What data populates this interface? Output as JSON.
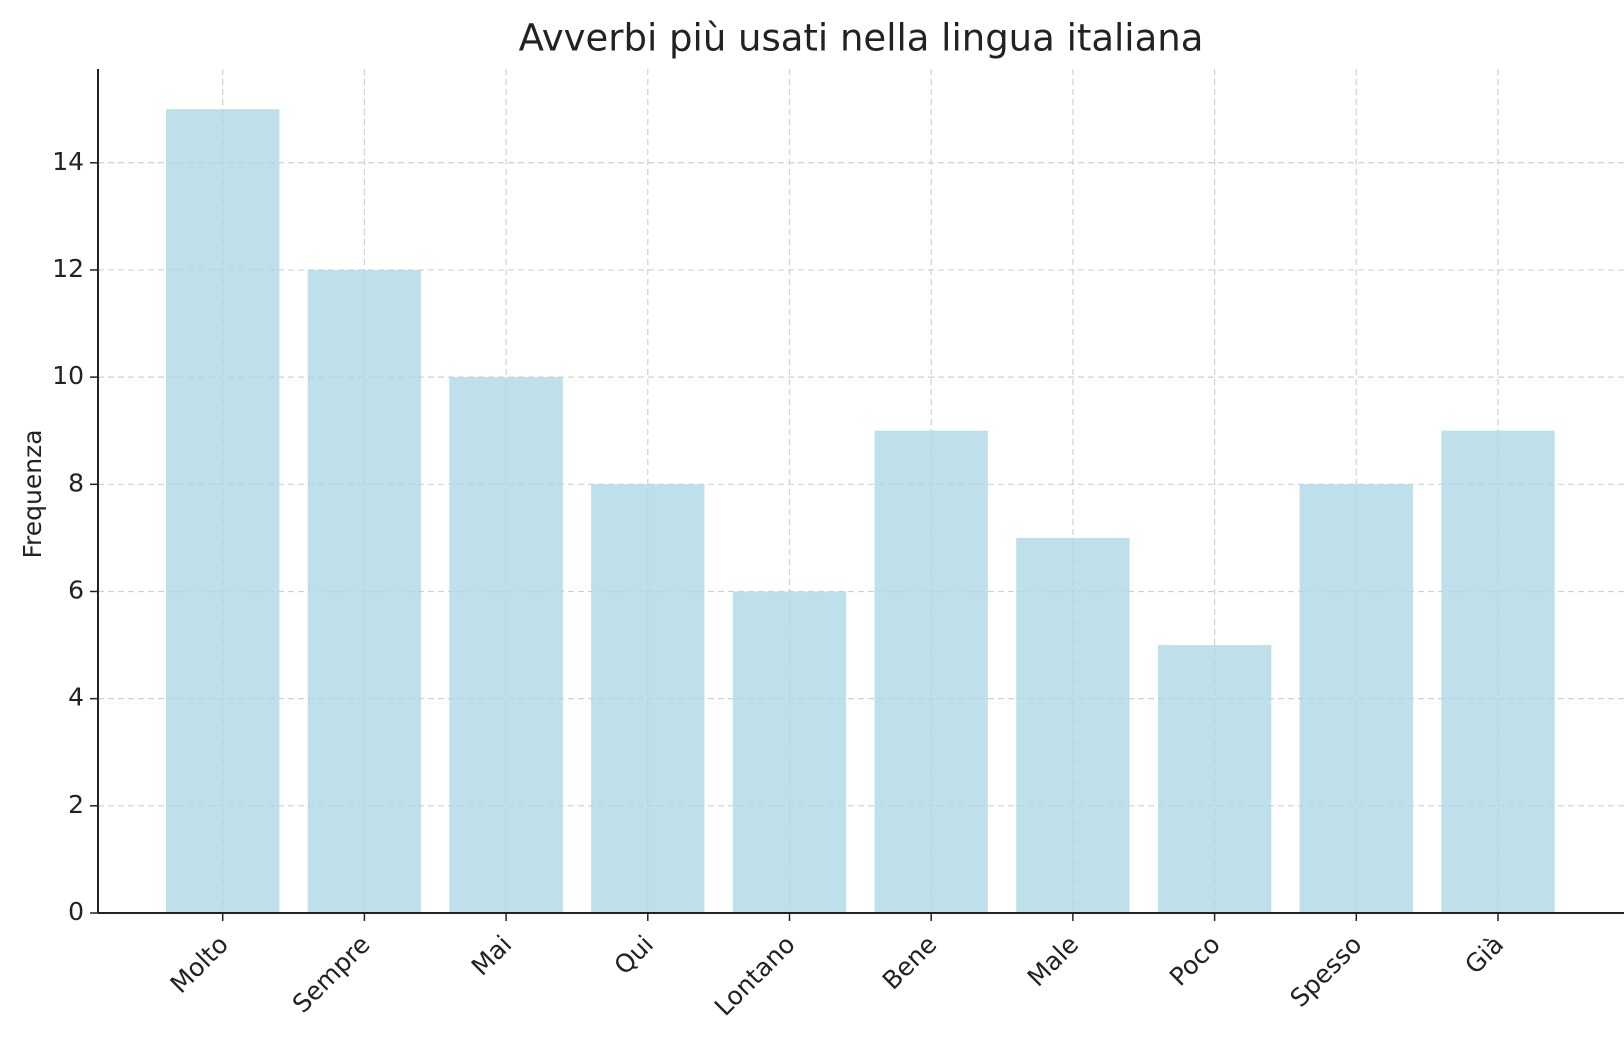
{
  "chart_data": {
    "type": "bar",
    "title": "Avverbi più usati nella lingua italiana",
    "y_label": "Frequenza",
    "categories": [
      "Molto",
      "Sempre",
      "Mai",
      "Qui",
      "Lontano",
      "Bene",
      "Male",
      "Poco",
      "Spesso",
      "Già"
    ],
    "values": [
      15,
      12,
      10,
      8,
      6,
      9,
      7,
      5,
      8,
      9
    ],
    "color": "#add8e6",
    "ylim": [
      0,
      15.75
    ],
    "yticks": [
      0,
      2,
      4,
      6,
      8,
      10,
      12,
      14
    ],
    "grid": true
  }
}
